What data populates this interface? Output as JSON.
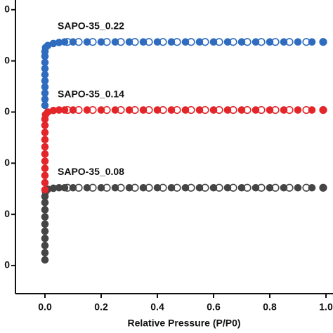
{
  "chart_data": {
    "type": "scatter",
    "x_label": "Relative Pressure (P/P0)",
    "xlim": [
      -0.105,
      1.025
    ],
    "xticks": [
      {
        "value": 0,
        "label": "0.0"
      },
      0.2,
      0.4,
      0.6,
      0.8,
      {
        "value": 1,
        "label": "1.0"
      }
    ],
    "ylim": [
      45,
      619
    ],
    "yticks": [
      {
        "value": 100,
        "label": "0"
      },
      {
        "value": 200,
        "label": "0"
      },
      {
        "value": 300,
        "label": "0"
      },
      {
        "value": 400,
        "label": "0"
      },
      {
        "value": 500,
        "label": "0"
      },
      {
        "value": 600,
        "label": "0"
      }
    ],
    "series": [
      {
        "name": "SAPO-35_0.08",
        "color": "#454545",
        "x": [
          0,
          0,
          0,
          0,
          0,
          0,
          0,
          0,
          0,
          0,
          0.002,
          0.01,
          0.03,
          0.05,
          0.07,
          0.1,
          0.15,
          0.2,
          0.25,
          0.3,
          0.35,
          0.4,
          0.45,
          0.5,
          0.55,
          0.6,
          0.65,
          0.7,
          0.75,
          0.8,
          0.85,
          0.9,
          0.95,
          0.99
        ],
        "values": [
          111,
          125,
          139,
          153,
          167,
          181,
          195,
          209,
          223,
          235,
          244,
          249,
          251,
          252,
          252,
          252,
          252,
          252,
          252,
          252,
          252,
          252,
          252,
          252,
          252,
          252,
          252,
          252,
          252,
          252,
          252,
          252,
          252,
          252
        ],
        "desorption_x": [
          0.99,
          0.93,
          0.87,
          0.82,
          0.77,
          0.72,
          0.67,
          0.62,
          0.57,
          0.52,
          0.47,
          0.42,
          0.37,
          0.32,
          0.27,
          0.22,
          0.17,
          0.12,
          0.08
        ],
        "desorption_values": [
          252,
          252,
          252,
          252,
          252,
          252,
          252,
          252,
          252,
          252,
          252,
          252,
          252,
          252,
          252,
          252,
          252,
          252,
          252
        ]
      },
      {
        "name": "SAPO-35_0.14",
        "color": "#e3262a",
        "x": [
          0,
          0,
          0,
          0,
          0,
          0,
          0,
          0,
          0,
          0,
          0,
          0.002,
          0.01,
          0.03,
          0.05,
          0.07,
          0.1,
          0.15,
          0.2,
          0.25,
          0.3,
          0.35,
          0.4,
          0.45,
          0.5,
          0.55,
          0.6,
          0.65,
          0.7,
          0.75,
          0.8,
          0.85,
          0.9,
          0.95,
          0.99
        ],
        "values": [
          248,
          262,
          276,
          290,
          304,
          318,
          332,
          346,
          360,
          374,
          386,
          395,
          400,
          403,
          404,
          404,
          404,
          404,
          404,
          404,
          404,
          404,
          404,
          404,
          404,
          404,
          404,
          404,
          404,
          404,
          404,
          404,
          404,
          404,
          404
        ],
        "desorption_x": [
          0.99,
          0.93,
          0.87,
          0.82,
          0.77,
          0.72,
          0.67,
          0.62,
          0.57,
          0.52,
          0.47,
          0.42,
          0.37,
          0.32,
          0.27,
          0.22,
          0.17,
          0.12,
          0.08
        ],
        "desorption_values": [
          404,
          404,
          404,
          404,
          404,
          404,
          404,
          404,
          404,
          404,
          404,
          404,
          404,
          404,
          404,
          404,
          404,
          404,
          404
        ]
      },
      {
        "name": "SAPO-35_0.22",
        "color": "#2f6cbf",
        "x": [
          0,
          0,
          0,
          0,
          0,
          0,
          0,
          0,
          0,
          0,
          0.002,
          0.01,
          0.03,
          0.05,
          0.07,
          0.1,
          0.15,
          0.2,
          0.25,
          0.3,
          0.35,
          0.4,
          0.45,
          0.5,
          0.55,
          0.6,
          0.65,
          0.7,
          0.75,
          0.8,
          0.85,
          0.9,
          0.95,
          0.99
        ],
        "values": [
          413,
          425,
          437,
          449,
          461,
          473,
          485,
          497,
          509,
          518,
          526,
          530,
          534,
          536,
          537,
          537,
          537,
          537,
          537,
          537,
          537,
          537,
          537,
          537,
          537,
          537,
          537,
          537,
          537,
          537,
          537,
          537,
          537,
          537
        ],
        "desorption_x": [
          0.99,
          0.93,
          0.87,
          0.82,
          0.77,
          0.72,
          0.67,
          0.62,
          0.57,
          0.52,
          0.47,
          0.42,
          0.37,
          0.32,
          0.27,
          0.22,
          0.17,
          0.12,
          0.08
        ],
        "desorption_values": [
          537,
          537,
          537,
          537,
          537,
          537,
          537,
          537,
          537,
          537,
          537,
          537,
          537,
          537,
          537,
          537,
          537,
          537,
          537
        ]
      }
    ]
  }
}
